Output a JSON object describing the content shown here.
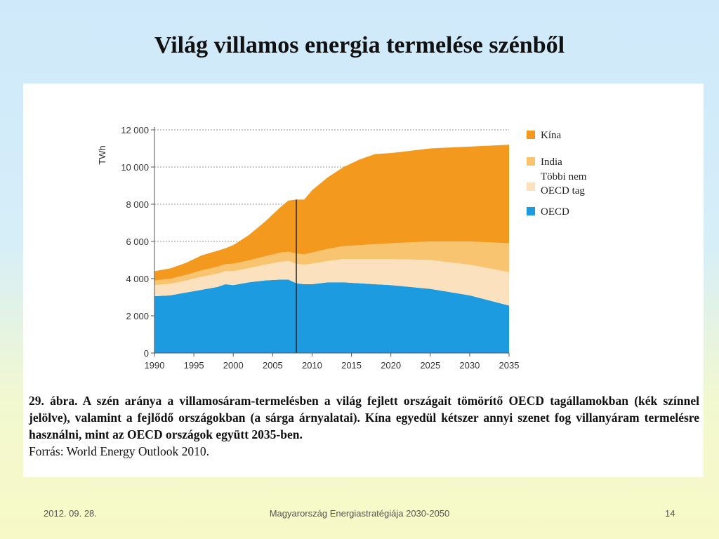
{
  "slide": {
    "title": "Világ villamos energia termelése szénből",
    "footer_date": "2012. 09. 28.",
    "footer_center": "Magyarország Energiastratégiája 2030-2050",
    "footer_page": "14"
  },
  "caption": {
    "bold": "29. ábra. A szén aránya a villamosáram-termelésben a világ fejlett országait tömörítő OECD tagállamokban (kék színnel jelölve), valamint a fejlődő országokban (a sárga árnyalatai). Kína egyedül kétszer annyi szenet fog villanyáram termelésre használni, mint az OECD országok együtt 2035-ben.",
    "source": "Forrás: World Energy Outlook 2010."
  },
  "chart_data": {
    "type": "area",
    "stacked": true,
    "ylabel": "TWh",
    "ylim": [
      0,
      12000
    ],
    "xlim": [
      1990,
      2035
    ],
    "yticks": [
      0,
      2000,
      4000,
      6000,
      8000,
      10000,
      12000
    ],
    "ytick_labels": [
      "0",
      "2 000",
      "4 000",
      "6 000",
      "8 000",
      "10 000",
      "12 000"
    ],
    "xticks": [
      1990,
      1995,
      2000,
      2005,
      2010,
      2015,
      2020,
      2025,
      2030,
      2035
    ],
    "xtick_labels": [
      "1990",
      "1995",
      "2000",
      "2005",
      "2010",
      "2015",
      "2020",
      "2025",
      "2030",
      "2035"
    ],
    "grid": "horizontal dotted",
    "legend_position": "right",
    "marker_line_x": 2008,
    "x": [
      1990,
      1992,
      1994,
      1996,
      1998,
      1999,
      2000,
      2002,
      2004,
      2006,
      2007,
      2008,
      2009,
      2010,
      2012,
      2014,
      2016,
      2018,
      2020,
      2025,
      2030,
      2035
    ],
    "series": [
      {
        "name": "OECD",
        "color": "#1d9be0",
        "values": [
          3050,
          3100,
          3250,
          3400,
          3550,
          3700,
          3650,
          3800,
          3900,
          3950,
          3950,
          3750,
          3700,
          3700,
          3800,
          3800,
          3750,
          3700,
          3650,
          3450,
          3100,
          2550
        ]
      },
      {
        "name": "Többi nem OECD tag",
        "color": "#fbe1bd",
        "values": [
          600,
          620,
          650,
          700,
          720,
          700,
          750,
          760,
          850,
          950,
          1000,
          1050,
          1050,
          1100,
          1150,
          1250,
          1300,
          1350,
          1400,
          1550,
          1650,
          1800
        ]
      },
      {
        "name": "India",
        "color": "#f9c46f",
        "values": [
          250,
          270,
          300,
          350,
          370,
          380,
          400,
          420,
          450,
          500,
          500,
          550,
          550,
          600,
          650,
          700,
          750,
          800,
          850,
          1000,
          1250,
          1550
        ]
      },
      {
        "name": "Kína",
        "color": "#f39a1e",
        "values": [
          500,
          560,
          650,
          800,
          860,
          850,
          1000,
          1370,
          1850,
          2450,
          2750,
          2900,
          2950,
          3350,
          3850,
          4250,
          4600,
          4850,
          4850,
          5000,
          5100,
          5300
        ]
      }
    ],
    "legend": [
      {
        "label": "Kína",
        "color": "#f39a1e"
      },
      {
        "label": "India",
        "color": "#f9c46f"
      },
      {
        "label_lines": [
          "Többi nem",
          "OECD tag"
        ],
        "color": "#fbe1bd"
      },
      {
        "label": "OECD",
        "color": "#1d9be0"
      }
    ]
  }
}
